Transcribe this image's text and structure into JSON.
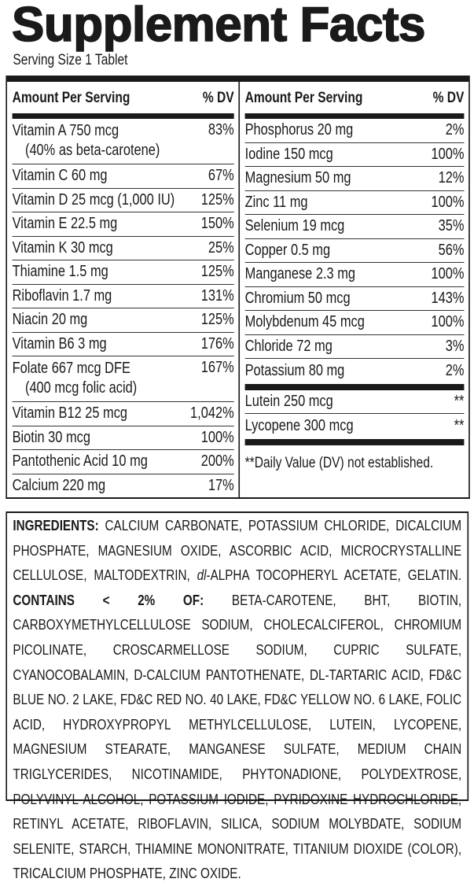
{
  "title": "Supplement Facts",
  "serving_size": "Serving Size 1 Tablet",
  "left": {
    "header": [
      "Amount Per Serving",
      "% DV"
    ],
    "rows": [
      {
        "name": "Vitamin A 750 mcg",
        "note": "(40% as beta-carotene)",
        "dv": "83%"
      },
      {
        "name": "Vitamin C 60 mg",
        "dv": "67%"
      },
      {
        "name": "Vitamin D 25 mcg (1,000 IU)",
        "dv": "125%"
      },
      {
        "name": "Vitamin E 22.5 mg",
        "dv": "150%"
      },
      {
        "name": "Vitamin K 30 mcg",
        "dv": "25%"
      },
      {
        "name": "Thiamine 1.5 mg",
        "dv": "125%"
      },
      {
        "name": "Riboflavin 1.7 mg",
        "dv": "131%"
      },
      {
        "name": "Niacin 20 mg",
        "dv": "125%"
      },
      {
        "name": "Vitamin B6 3 mg",
        "dv": "176%"
      },
      {
        "name": "Folate 667 mcg DFE",
        "note": "(400 mcg folic acid)",
        "dv": "167%"
      },
      {
        "name": "Vitamin B12 25 mcg",
        "dv": "1,042%"
      },
      {
        "name": "Biotin 30 mcg",
        "dv": "100%"
      },
      {
        "name": "Pantothenic Acid 10 mg",
        "dv": "200%"
      },
      {
        "name": "Calcium 220 mg",
        "dv": "17%"
      }
    ]
  },
  "right": {
    "header": [
      "Amount Per Serving",
      "% DV"
    ],
    "rows": [
      {
        "name": "Phosphorus 20 mg",
        "dv": "2%"
      },
      {
        "name": "Iodine 150 mcg",
        "dv": "100%"
      },
      {
        "name": "Magnesium 50 mg",
        "dv": "12%"
      },
      {
        "name": "Zinc 11 mg",
        "dv": "100%"
      },
      {
        "name": "Selenium 19 mcg",
        "dv": "35%"
      },
      {
        "name": "Copper 0.5 mg",
        "dv": "56%"
      },
      {
        "name": "Manganese 2.3 mg",
        "dv": "100%"
      },
      {
        "name": "Chromium 50 mcg",
        "dv": "143%"
      },
      {
        "name": "Molybdenum 45 mcg",
        "dv": "100%"
      },
      {
        "name": "Chloride 72 mg",
        "dv": "3%"
      },
      {
        "name": "Potassium 80 mg",
        "dv": "2%"
      }
    ],
    "other_rows": [
      {
        "name": "Lutein 250 mcg",
        "dv": "**"
      },
      {
        "name": "Lycopene 300 mcg",
        "dv": "**"
      }
    ],
    "footnote": "**Daily Value (DV) not established."
  },
  "ingredients": {
    "label": "INGREDIENTS:",
    "text_a": " CALCIUM CARBONATE, POTASSIUM CHLORIDE, DICALCIUM PHOSPHATE, MAGNESIUM OXIDE, ASCORBIC ACID, MICROCRYSTALLINE CELLULOSE, MALTODEXTRIN, ",
    "italic": "dl",
    "text_b": "-ALPHA TOCOPHERYL ACETATE, GELATIN. ",
    "contains_label": "CONTAINS < 2% OF:",
    "text_c": " BETA-CAROTENE, BHT, BIOTIN, CARBOXYMETHYLCELLULOSE SODIUM, CHOLECALCIFEROL, CHROMIUM PICOLINATE, CROSCARMELLOSE SODIUM, CUPRIC SULFATE, CYANOCOBALAMIN, D-CALCIUM PANTOTHENATE, DL-TARTARIC ACID, FD&C BLUE NO. 2 LAKE, FD&C RED NO. 40 LAKE, FD&C YELLOW NO. 6 LAKE, FOLIC ACID, HYDROXYPROPYL METHYLCELLULOSE, LUTEIN, LYCOPENE, MAGNESIUM STEARATE, MANGANESE SULFATE, MEDIUM CHAIN TRIGLYCERIDES, NICOTINAMIDE, PHYTONADIONE, POLYDEXTROSE, POLYVINYL ALCOHOL, POTASSIUM IODIDE, PYRIDOXINE HYDROCHLORIDE, RETINYL ACETATE, RIBOFLAVIN, SILICA, SODIUM MOLYBDATE, SODIUM SELENITE, STARCH, THIAMINE MONONITRATE, TITANIUM DIOXIDE (COLOR), TRICALCIUM PHOSPHATE, ZINC OXIDE."
  }
}
